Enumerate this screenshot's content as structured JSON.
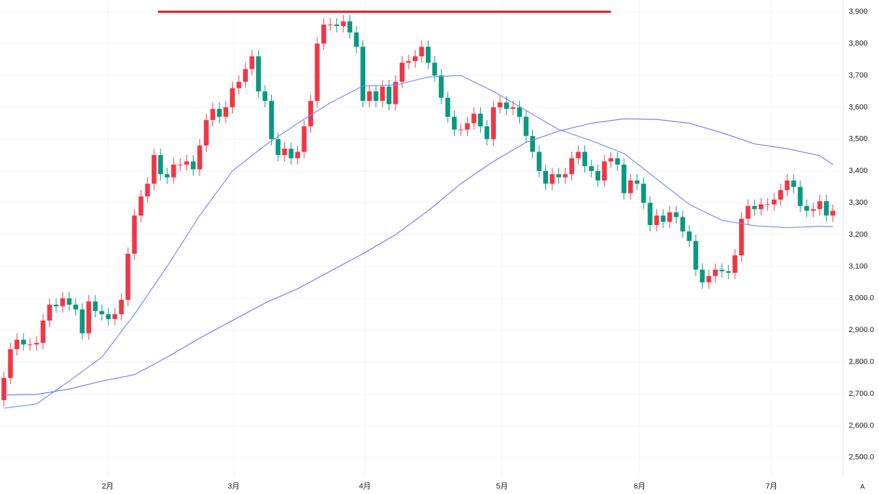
{
  "chart_data": {
    "type": "candlestick",
    "xlim": [
      -0.6,
      128.6
    ],
    "ylim": [
      2437,
      3937
    ],
    "xticks": [
      {
        "value": 15.9,
        "label": "2月"
      },
      {
        "value": 35.2,
        "label": "3月"
      },
      {
        "value": 55.3,
        "label": "4月"
      },
      {
        "value": 76.3,
        "label": "5月"
      },
      {
        "value": 97.4,
        "label": "6月"
      },
      {
        "value": 117.6,
        "label": "7月"
      }
    ],
    "yticks": [
      {
        "value": 2500,
        "label": "2,500.0"
      },
      {
        "value": 2600,
        "label": "2,600.0"
      },
      {
        "value": 2700,
        "label": "2,700.0"
      },
      {
        "value": 2800,
        "label": "2,800.0"
      },
      {
        "value": 2900,
        "label": "2,900.0"
      },
      {
        "value": 3000,
        "label": "3,000.0"
      },
      {
        "value": 3100,
        "label": "3,100"
      },
      {
        "value": 3200,
        "label": "3,200"
      },
      {
        "value": 3300,
        "label": "3,300"
      },
      {
        "value": 3400,
        "label": "3,400"
      },
      {
        "value": 3500,
        "label": "3,500"
      },
      {
        "value": 3600,
        "label": "3,600"
      },
      {
        "value": 3700,
        "label": "3,700"
      },
      {
        "value": 3800,
        "label": "3,800"
      },
      {
        "value": 3900,
        "label": "3,900"
      }
    ],
    "grid": true,
    "up_color": "#f23645",
    "down_color": "#089981",
    "ohlc": {
      "open": [
        2680,
        2750,
        2840,
        2870,
        2855,
        2855,
        2860,
        2930,
        2980,
        2975,
        3000,
        2980,
        2965,
        2890,
        2990,
        2960,
        2950,
        2935,
        2950,
        2995,
        3140,
        3260,
        3320,
        3360,
        3450,
        3390,
        3380,
        3420,
        3420,
        3430,
        3405,
        3480,
        3560,
        3595,
        3570,
        3600,
        3660,
        3680,
        3720,
        3760,
        3650,
        3620,
        3500,
        3450,
        3470,
        3440,
        3460,
        3540,
        3620,
        3800,
        3860,
        3860,
        3855,
        3870,
        3835,
        3790,
        3620,
        3650,
        3620,
        3665,
        3610,
        3680,
        3740,
        3745,
        3760,
        3790,
        3740,
        3700,
        3630,
        3570,
        3530,
        3530,
        3550,
        3580,
        3540,
        3500,
        3600,
        3615,
        3595,
        3600,
        3570,
        3510,
        3460,
        3400,
        3360,
        3390,
        3380,
        3390,
        3440,
        3460,
        3415,
        3400,
        3370,
        3430,
        3440,
        3420,
        3330,
        3370,
        3360,
        3300,
        3230,
        3260,
        3240,
        3270,
        3255,
        3210,
        3180,
        3090,
        3050,
        3070,
        3090,
        3085,
        3080,
        3135,
        3250,
        3290,
        3280,
        3295,
        3295,
        3310,
        3340,
        3370,
        3350,
        3290,
        3275,
        3280,
        3305,
        3260
      ],
      "high": [
        2770,
        2860,
        2890,
        2890,
        2875,
        2880,
        2950,
        3000,
        3000,
        3020,
        3020,
        3000,
        2985,
        3010,
        3010,
        2980,
        2970,
        2970,
        3015,
        3160,
        3280,
        3340,
        3380,
        3470,
        3470,
        3410,
        3440,
        3440,
        3450,
        3450,
        3500,
        3580,
        3615,
        3615,
        3620,
        3680,
        3700,
        3740,
        3780,
        3780,
        3670,
        3640,
        3520,
        3490,
        3490,
        3480,
        3560,
        3640,
        3820,
        3880,
        3880,
        3880,
        3890,
        3890,
        3855,
        3810,
        3670,
        3670,
        3685,
        3685,
        3700,
        3760,
        3765,
        3780,
        3810,
        3810,
        3760,
        3720,
        3650,
        3590,
        3550,
        3570,
        3600,
        3600,
        3560,
        3620,
        3635,
        3635,
        3620,
        3620,
        3590,
        3530,
        3480,
        3420,
        3410,
        3410,
        3410,
        3460,
        3480,
        3480,
        3435,
        3420,
        3450,
        3460,
        3460,
        3440,
        3390,
        3390,
        3380,
        3320,
        3280,
        3280,
        3290,
        3290,
        3275,
        3230,
        3200,
        3110,
        3090,
        3110,
        3110,
        3105,
        3155,
        3270,
        3310,
        3310,
        3315,
        3315,
        3330,
        3360,
        3390,
        3390,
        3370,
        3310,
        3300,
        3325,
        3325,
        3295
      ],
      "low": [
        2660,
        2730,
        2820,
        2835,
        2835,
        2835,
        2840,
        2910,
        2955,
        2955,
        2960,
        2945,
        2870,
        2870,
        2940,
        2930,
        2915,
        2915,
        2930,
        2975,
        3120,
        3240,
        3300,
        3340,
        3370,
        3360,
        3360,
        3400,
        3400,
        3385,
        3385,
        3460,
        3540,
        3550,
        3550,
        3580,
        3640,
        3660,
        3700,
        3630,
        3600,
        3480,
        3430,
        3430,
        3420,
        3420,
        3440,
        3520,
        3600,
        3780,
        3840,
        3835,
        3835,
        3815,
        3770,
        3600,
        3600,
        3600,
        3600,
        3590,
        3590,
        3660,
        3720,
        3725,
        3740,
        3720,
        3680,
        3610,
        3550,
        3510,
        3510,
        3510,
        3530,
        3520,
        3480,
        3480,
        3580,
        3575,
        3575,
        3550,
        3490,
        3440,
        3380,
        3340,
        3340,
        3360,
        3360,
        3370,
        3420,
        3395,
        3380,
        3350,
        3350,
        3410,
        3400,
        3310,
        3310,
        3340,
        3280,
        3210,
        3210,
        3220,
        3220,
        3235,
        3190,
        3160,
        3070,
        3030,
        3030,
        3050,
        3065,
        3060,
        3060,
        3115,
        3230,
        3260,
        3260,
        3275,
        3275,
        3290,
        3320,
        3330,
        3270,
        3255,
        3255,
        3260,
        3240,
        3240
      ],
      "close": [
        2750,
        2840,
        2870,
        2855,
        2855,
        2860,
        2930,
        2980,
        2975,
        3000,
        2980,
        2965,
        2890,
        2990,
        2960,
        2950,
        2935,
        2950,
        2995,
        3140,
        3260,
        3320,
        3360,
        3450,
        3390,
        3380,
        3420,
        3420,
        3430,
        3405,
        3480,
        3560,
        3595,
        3570,
        3600,
        3660,
        3680,
        3720,
        3760,
        3650,
        3620,
        3500,
        3450,
        3470,
        3440,
        3460,
        3540,
        3620,
        3800,
        3860,
        3860,
        3855,
        3870,
        3835,
        3790,
        3620,
        3650,
        3620,
        3665,
        3610,
        3680,
        3740,
        3745,
        3760,
        3790,
        3740,
        3700,
        3630,
        3570,
        3530,
        3530,
        3550,
        3580,
        3540,
        3500,
        3600,
        3615,
        3595,
        3600,
        3570,
        3510,
        3460,
        3400,
        3360,
        3390,
        3380,
        3390,
        3440,
        3460,
        3415,
        3400,
        3370,
        3430,
        3440,
        3420,
        3330,
        3370,
        3360,
        3300,
        3230,
        3260,
        3240,
        3270,
        3255,
        3210,
        3180,
        3090,
        3050,
        3070,
        3090,
        3085,
        3080,
        3135,
        3250,
        3290,
        3280,
        3295,
        3295,
        3310,
        3340,
        3370,
        3350,
        3290,
        3275,
        3280,
        3305,
        3260,
        3275
      ]
    },
    "ma": [
      {
        "color": "#6f8ff5",
        "x": [
          0,
          5,
          10,
          15,
          20,
          25,
          30,
          35,
          40,
          45,
          50,
          55,
          60,
          65,
          70,
          75,
          80,
          85,
          90,
          95,
          100,
          105,
          110,
          115,
          120,
          125,
          127
        ],
        "values": [
          2655,
          2668,
          2740,
          2815,
          2950,
          3100,
          3260,
          3400,
          3480,
          3550,
          3614,
          3667,
          3670,
          3695,
          3700,
          3650,
          3590,
          3530,
          3495,
          3455,
          3375,
          3295,
          3245,
          3228,
          3222,
          3226,
          3225
        ]
      },
      {
        "color": "#6f7ff0",
        "x": [
          0,
          5,
          10,
          15,
          20,
          25,
          30,
          35,
          40,
          45,
          50,
          55,
          60,
          65,
          70,
          75,
          80,
          85,
          90,
          95,
          100,
          105,
          110,
          115,
          120,
          125,
          127
        ],
        "values": [
          2696,
          2698,
          2715,
          2740,
          2760,
          2815,
          2875,
          2930,
          2985,
          3030,
          3085,
          3140,
          3200,
          3275,
          3360,
          3430,
          3490,
          3525,
          3550,
          3564,
          3562,
          3550,
          3520,
          3485,
          3470,
          3448,
          3420
        ]
      }
    ],
    "level": {
      "value": 3900,
      "x": [
        23.6,
        93
      ],
      "color": "#e0141e"
    },
    "scale_button": "A"
  }
}
